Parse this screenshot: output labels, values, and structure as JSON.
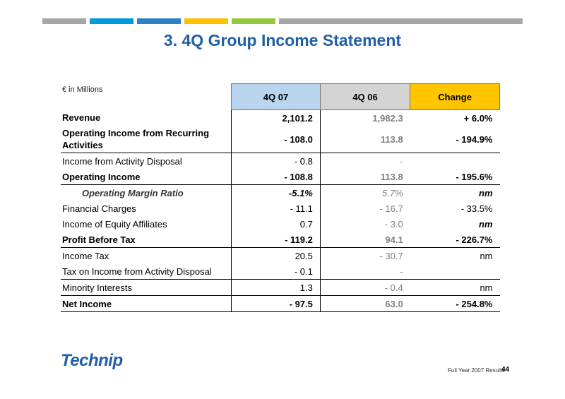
{
  "slide": {
    "title": "3.  4Q Group Income Statement",
    "units": "€ in Millions",
    "accent_colors": [
      "#a6a6a6",
      "#0099e0",
      "#2f7fc6",
      "#ffc000",
      "#92c83e",
      "#a6a6a6"
    ]
  },
  "table": {
    "headers": [
      "4Q 07",
      "4Q 06",
      "Change"
    ],
    "rows": [
      {
        "label": "Revenue",
        "v1": "2,101.2",
        "v2": "1,982.3",
        "v3": "+ 6.0%"
      },
      {
        "label": "Operating Income from Recurring Activities",
        "v1": "- 108.0",
        "v2": "113.8",
        "v3": "- 194.9%"
      },
      {
        "label": "Income from Activity Disposal",
        "v1": "- 0.8",
        "v2": "-",
        "v3": ""
      },
      {
        "label": "Operating Income",
        "v1": "- 108.8",
        "v2": "113.8",
        "v3": "- 195.6%"
      },
      {
        "label": "Operating Margin Ratio",
        "v1": "-5.1%",
        "v2": "5.7%",
        "v3": "nm"
      },
      {
        "label": "Financial Charges",
        "v1": "- 11.1",
        "v2": "- 16.7",
        "v3": "- 33.5%"
      },
      {
        "label": "Income of Equity Affiliates",
        "v1": "0.7",
        "v2": "- 3.0",
        "v3": "nm"
      },
      {
        "label": "Profit Before Tax",
        "v1": "- 119.2",
        "v2": "94.1",
        "v3": "- 226.7%"
      },
      {
        "label": "Income Tax",
        "v1": "20.5",
        "v2": "- 30.7",
        "v3": "nm"
      },
      {
        "label": "Tax on Income from Activity Disposal",
        "v1": "- 0.1",
        "v2": "-",
        "v3": ""
      },
      {
        "label": "Minority Interests",
        "v1": "1.3",
        "v2": "- 0.4",
        "v3": "nm"
      },
      {
        "label": "Net Income",
        "v1": "- 97.5",
        "v2": "63.0",
        "v3": "- 254.8%"
      }
    ]
  },
  "footer": {
    "logo_text": "Technip",
    "caption": "Full Year 2007 Results",
    "page": "44"
  }
}
